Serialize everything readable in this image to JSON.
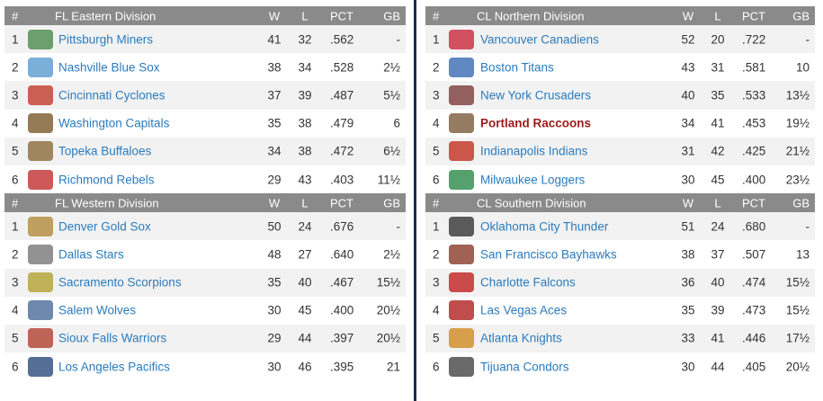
{
  "columns": {
    "num": "#",
    "w": "W",
    "l": "L",
    "pct": "PCT",
    "gb": "GB"
  },
  "divisions": [
    {
      "title": "FL Eastern Division",
      "teams": [
        {
          "rank": "1",
          "name": "Pittsburgh Miners",
          "w": "41",
          "l": "32",
          "pct": ".562",
          "gb": "-",
          "logo_color": "#4a8a4a"
        },
        {
          "rank": "2",
          "name": "Nashville Blue Sox",
          "w": "38",
          "l": "34",
          "pct": ".528",
          "gb": "2½",
          "logo_color": "#5a9ad0"
        },
        {
          "rank": "3",
          "name": "Cincinnati Cyclones",
          "w": "37",
          "l": "39",
          "pct": ".487",
          "gb": "5½",
          "logo_color": "#c0392b"
        },
        {
          "rank": "4",
          "name": "Washington Capitals",
          "w": "35",
          "l": "38",
          "pct": ".479",
          "gb": "6",
          "logo_color": "#7a5a2a"
        },
        {
          "rank": "5",
          "name": "Topeka Buffaloes",
          "w": "34",
          "l": "38",
          "pct": ".472",
          "gb": "6½",
          "logo_color": "#8a6a3a"
        },
        {
          "rank": "6",
          "name": "Richmond Rebels",
          "w": "29",
          "l": "43",
          "pct": ".403",
          "gb": "11½",
          "logo_color": "#c03030"
        }
      ]
    },
    {
      "title": "FL Western Division",
      "teams": [
        {
          "rank": "1",
          "name": "Denver Gold Sox",
          "w": "50",
          "l": "24",
          "pct": ".676",
          "gb": "-",
          "logo_color": "#b08a3a"
        },
        {
          "rank": "2",
          "name": "Dallas Stars",
          "w": "48",
          "l": "27",
          "pct": ".640",
          "gb": "2½",
          "logo_color": "#777777"
        },
        {
          "rank": "3",
          "name": "Sacramento Scorpions",
          "w": "35",
          "l": "40",
          "pct": ".467",
          "gb": "15½",
          "logo_color": "#b0a030"
        },
        {
          "rank": "4",
          "name": "Salem Wolves",
          "w": "30",
          "l": "45",
          "pct": ".400",
          "gb": "20½",
          "logo_color": "#4a6a9a"
        },
        {
          "rank": "5",
          "name": "Sioux Falls Warriors",
          "w": "29",
          "l": "44",
          "pct": ".397",
          "gb": "20½",
          "logo_color": "#b04030"
        },
        {
          "rank": "6",
          "name": "Los Angeles Pacifics",
          "w": "30",
          "l": "46",
          "pct": ".395",
          "gb": "21",
          "logo_color": "#2a4a7a"
        }
      ]
    },
    {
      "title": "CL Northern Division",
      "teams": [
        {
          "rank": "1",
          "name": "Vancouver Canadiens",
          "w": "52",
          "l": "20",
          "pct": ".722",
          "gb": "-",
          "logo_color": "#c8283c"
        },
        {
          "rank": "2",
          "name": "Boston Titans",
          "w": "43",
          "l": "31",
          "pct": ".581",
          "gb": "10",
          "logo_color": "#3a6ab0"
        },
        {
          "rank": "3",
          "name": "New York Crusaders",
          "w": "40",
          "l": "35",
          "pct": ".533",
          "gb": "13½",
          "logo_color": "#7a3a3a"
        },
        {
          "rank": "4",
          "name": "Portland Raccoons",
          "w": "34",
          "l": "41",
          "pct": ".453",
          "gb": "19½",
          "logo_color": "#7a5a3a",
          "highlight": true
        },
        {
          "rank": "5",
          "name": "Indianapolis Indians",
          "w": "31",
          "l": "42",
          "pct": ".425",
          "gb": "21½",
          "logo_color": "#c03020"
        },
        {
          "rank": "6",
          "name": "Milwaukee Loggers",
          "w": "30",
          "l": "45",
          "pct": ".400",
          "gb": "23½",
          "logo_color": "#2a8a4a"
        }
      ]
    },
    {
      "title": "CL Southern Division",
      "teams": [
        {
          "rank": "1",
          "name": "Oklahoma City Thunder",
          "w": "51",
          "l": "24",
          "pct": ".680",
          "gb": "-",
          "logo_color": "#333333"
        },
        {
          "rank": "2",
          "name": "San Francisco Bayhawks",
          "w": "38",
          "l": "37",
          "pct": ".507",
          "gb": "13",
          "logo_color": "#8a3a2a"
        },
        {
          "rank": "3",
          "name": "Charlotte Falcons",
          "w": "36",
          "l": "40",
          "pct": ".474",
          "gb": "15½",
          "logo_color": "#c02020"
        },
        {
          "rank": "4",
          "name": "Las Vegas Aces",
          "w": "35",
          "l": "39",
          "pct": ".473",
          "gb": "15½",
          "logo_color": "#b02020"
        },
        {
          "rank": "5",
          "name": "Atlanta Knights",
          "w": "33",
          "l": "41",
          "pct": ".446",
          "gb": "17½",
          "logo_color": "#d08a20"
        },
        {
          "rank": "6",
          "name": "Tijuana Condors",
          "w": "30",
          "l": "44",
          "pct": ".405",
          "gb": "20½",
          "logo_color": "#444444"
        }
      ]
    }
  ]
}
